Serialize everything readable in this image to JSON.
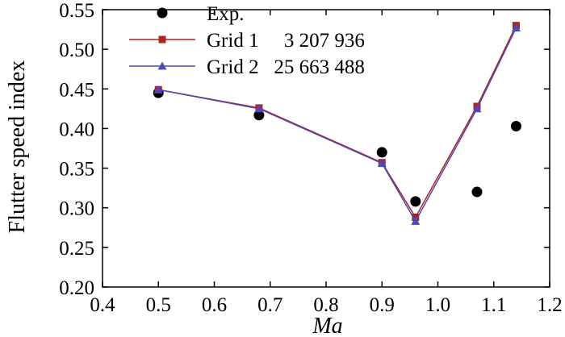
{
  "chart_data": {
    "type": "line",
    "title": "",
    "xlabel": "Ma",
    "ylabel": "Flutter speed index",
    "xlim": [
      0.4,
      1.2
    ],
    "ylim": [
      0.2,
      0.55
    ],
    "grid": false,
    "legend_position": "top-left",
    "x_ticks": [
      "0.4",
      "0.5",
      "0.6",
      "0.7",
      "0.8",
      "0.9",
      "1.0",
      "1.1",
      "1.2"
    ],
    "y_ticks": [
      "0.20",
      "0.25",
      "0.30",
      "0.35",
      "0.40",
      "0.45",
      "0.50",
      "0.55"
    ],
    "series": [
      {
        "name": "Exp.",
        "legend_text": "Exp.",
        "style": "marker-only",
        "marker": "circle",
        "color": "#000000",
        "x": [
          0.5,
          0.68,
          0.9,
          0.96,
          1.07,
          1.14
        ],
        "y": [
          0.445,
          0.417,
          0.37,
          0.308,
          0.32,
          0.403
        ]
      },
      {
        "name": "Grid 1",
        "legend_text": "Grid 1     3 207 936",
        "style": "line-marker",
        "marker": "square",
        "color": "#b52020",
        "x": [
          0.5,
          0.68,
          0.9,
          0.96,
          1.07,
          1.14
        ],
        "y": [
          0.449,
          0.426,
          0.357,
          0.288,
          0.428,
          0.53
        ]
      },
      {
        "name": "Grid 2",
        "legend_text": "Grid 2   25 663 488",
        "style": "line-marker",
        "marker": "triangle",
        "color": "#4a4ab8",
        "x": [
          0.5,
          0.68,
          0.9,
          0.96,
          1.07,
          1.14
        ],
        "y": [
          0.449,
          0.425,
          0.356,
          0.283,
          0.425,
          0.527
        ]
      }
    ]
  }
}
